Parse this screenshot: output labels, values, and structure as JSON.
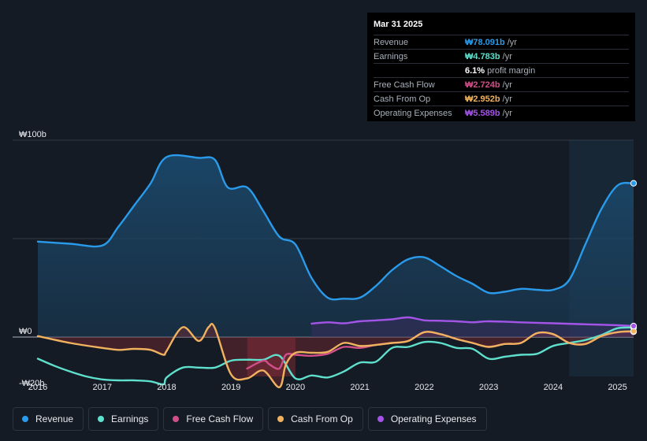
{
  "tooltip": {
    "date": "Mar 31 2025",
    "rows": [
      {
        "label": "Revenue",
        "value": "₩78.091b",
        "unit": "/yr",
        "color": "#2a9bea"
      },
      {
        "label": "Earnings",
        "value": "₩4.783b",
        "unit": "/yr",
        "color": "#5ee0cd"
      },
      {
        "label": "",
        "value": "6.1%",
        "unit": "profit margin",
        "color": "#ffffff"
      },
      {
        "label": "Free Cash Flow",
        "value": "₩2.724b",
        "unit": "/yr",
        "color": "#d14f8a"
      },
      {
        "label": "Cash From Op",
        "value": "₩2.952b",
        "unit": "/yr",
        "color": "#f0b25e"
      },
      {
        "label": "Operating Expenses",
        "value": "₩5.589b",
        "unit": "/yr",
        "color": "#a455e8"
      }
    ]
  },
  "legend": [
    {
      "label": "Revenue",
      "color": "#2a9bea"
    },
    {
      "label": "Earnings",
      "color": "#5ee0cd"
    },
    {
      "label": "Free Cash Flow",
      "color": "#d14f8a"
    },
    {
      "label": "Cash From Op",
      "color": "#f0b25e"
    },
    {
      "label": "Operating Expenses",
      "color": "#a455e8"
    }
  ],
  "chart_data": {
    "type": "line",
    "y_tick_labels": [
      "₩100b",
      "₩0",
      "-₩20b"
    ],
    "y_ticks": [
      100,
      0,
      -20
    ],
    "ylim": [
      -20,
      100
    ],
    "xlim": [
      2016,
      2025.25
    ],
    "x_tick_labels": [
      "2016",
      "2017",
      "2018",
      "2019",
      "2020",
      "2021",
      "2022",
      "2023",
      "2024",
      "2025"
    ],
    "x_ticks": [
      2016,
      2017,
      2018,
      2019,
      2020,
      2021,
      2022,
      2023,
      2024,
      2025
    ],
    "forecast_start": 2024.25,
    "series": [
      {
        "name": "Revenue",
        "color": "#2a9bea",
        "fill": true,
        "points": [
          [
            2016,
            48.5
          ],
          [
            2016.5,
            47.4
          ],
          [
            2017,
            46.5
          ],
          [
            2017.25,
            56
          ],
          [
            2017.5,
            67
          ],
          [
            2017.75,
            78
          ],
          [
            2018,
            91.5
          ],
          [
            2018.5,
            91
          ],
          [
            2018.75,
            90
          ],
          [
            2018.95,
            76
          ],
          [
            2019.25,
            76
          ],
          [
            2019.5,
            64
          ],
          [
            2019.75,
            51
          ],
          [
            2020,
            47
          ],
          [
            2020.25,
            30
          ],
          [
            2020.5,
            20
          ],
          [
            2020.75,
            19.5
          ],
          [
            2021,
            20
          ],
          [
            2021.25,
            26
          ],
          [
            2021.5,
            34
          ],
          [
            2021.75,
            39.5
          ],
          [
            2022,
            40.5
          ],
          [
            2022.25,
            36
          ],
          [
            2022.5,
            31
          ],
          [
            2022.75,
            27
          ],
          [
            2023,
            22.5
          ],
          [
            2023.25,
            23
          ],
          [
            2023.5,
            24.5
          ],
          [
            2023.75,
            24
          ],
          [
            2024,
            24
          ],
          [
            2024.25,
            29
          ],
          [
            2024.5,
            47
          ],
          [
            2024.75,
            65
          ],
          [
            2025,
            77
          ],
          [
            2025.25,
            78.1
          ]
        ]
      },
      {
        "name": "Earnings",
        "color": "#5ee0cd",
        "fill": false,
        "points": [
          [
            2016,
            -11
          ],
          [
            2016.25,
            -14.5
          ],
          [
            2016.5,
            -17.5
          ],
          [
            2016.75,
            -20
          ],
          [
            2017,
            -21.5
          ],
          [
            2017.25,
            -22
          ],
          [
            2017.5,
            -22
          ],
          [
            2017.75,
            -22.5
          ],
          [
            2017.95,
            -24
          ],
          [
            2018,
            -20.5
          ],
          [
            2018.25,
            -15.5
          ],
          [
            2018.5,
            -15.5
          ],
          [
            2018.75,
            -15.5
          ],
          [
            2019,
            -12
          ],
          [
            2019.25,
            -11.5
          ],
          [
            2019.5,
            -11.5
          ],
          [
            2019.75,
            -9.5
          ],
          [
            2020,
            -21
          ],
          [
            2020.25,
            -19.5
          ],
          [
            2020.5,
            -20.5
          ],
          [
            2020.75,
            -17.5
          ],
          [
            2021,
            -13
          ],
          [
            2021.25,
            -12.5
          ],
          [
            2021.5,
            -5.5
          ],
          [
            2021.75,
            -5
          ],
          [
            2022,
            -2.5
          ],
          [
            2022.25,
            -3
          ],
          [
            2022.5,
            -5.5
          ],
          [
            2022.75,
            -6
          ],
          [
            2023,
            -11
          ],
          [
            2023.25,
            -10
          ],
          [
            2023.5,
            -9
          ],
          [
            2023.75,
            -8.5
          ],
          [
            2024,
            -4.5
          ],
          [
            2024.25,
            -3
          ],
          [
            2024.5,
            -1.5
          ],
          [
            2024.75,
            1
          ],
          [
            2025,
            4.5
          ],
          [
            2025.25,
            4.8
          ]
        ]
      },
      {
        "name": "Free Cash Flow",
        "color": "#d14f8a",
        "fill": false,
        "points": [
          [
            2019.25,
            -16
          ],
          [
            2019.5,
            -12
          ],
          [
            2019.6,
            -14
          ],
          [
            2019.75,
            -16
          ],
          [
            2019.85,
            -9
          ],
          [
            2020,
            -9
          ],
          [
            2020.25,
            -9.5
          ],
          [
            2020.5,
            -8.5
          ],
          [
            2020.75,
            -5
          ],
          [
            2021,
            -5.5
          ],
          [
            2021.25,
            -4
          ],
          [
            2021.5,
            -3
          ],
          [
            2021.75,
            -2
          ],
          [
            2022,
            2.5
          ],
          [
            2022.25,
            1.5
          ],
          [
            2022.5,
            -1
          ],
          [
            2022.75,
            -3
          ],
          [
            2023,
            -5
          ],
          [
            2023.25,
            -3.5
          ],
          [
            2023.5,
            -3
          ],
          [
            2023.75,
            2
          ],
          [
            2024,
            1.5
          ],
          [
            2024.25,
            -3
          ],
          [
            2024.5,
            -3.5
          ],
          [
            2024.75,
            0.5
          ],
          [
            2025,
            2.5
          ],
          [
            2025.25,
            2.7
          ]
        ]
      },
      {
        "name": "Cash From Op",
        "color": "#f0b25e",
        "fill": false,
        "points": [
          [
            2016,
            0.5
          ],
          [
            2016.5,
            -3
          ],
          [
            2017,
            -5.5
          ],
          [
            2017.25,
            -6.5
          ],
          [
            2017.5,
            -6
          ],
          [
            2017.75,
            -6.5
          ],
          [
            2017.95,
            -9
          ],
          [
            2018,
            -7
          ],
          [
            2018.25,
            5
          ],
          [
            2018.5,
            -2
          ],
          [
            2018.65,
            5
          ],
          [
            2018.75,
            4.5
          ],
          [
            2019,
            -19
          ],
          [
            2019.25,
            -21
          ],
          [
            2019.5,
            -17
          ],
          [
            2019.75,
            -25.5
          ],
          [
            2019.85,
            -14
          ],
          [
            2020,
            -8
          ],
          [
            2020.25,
            -8
          ],
          [
            2020.5,
            -7.5
          ],
          [
            2020.75,
            -3
          ],
          [
            2021,
            -4.5
          ],
          [
            2021.25,
            -4
          ],
          [
            2021.5,
            -3
          ],
          [
            2021.75,
            -2
          ],
          [
            2022,
            2.5
          ],
          [
            2022.25,
            1.5
          ],
          [
            2022.5,
            -1
          ],
          [
            2022.75,
            -3
          ],
          [
            2023,
            -5
          ],
          [
            2023.25,
            -3.5
          ],
          [
            2023.5,
            -3
          ],
          [
            2023.75,
            2
          ],
          [
            2024,
            1.5
          ],
          [
            2024.25,
            -3
          ],
          [
            2024.5,
            -3.5
          ],
          [
            2024.75,
            0.5
          ],
          [
            2025,
            2.5
          ],
          [
            2025.25,
            2.95
          ]
        ]
      },
      {
        "name": "Operating Expenses",
        "color": "#a455e8",
        "fill": false,
        "points": [
          [
            2020.25,
            6.8
          ],
          [
            2020.5,
            7.5
          ],
          [
            2020.75,
            7
          ],
          [
            2021,
            8
          ],
          [
            2021.25,
            8.5
          ],
          [
            2021.5,
            9
          ],
          [
            2021.75,
            10
          ],
          [
            2022,
            8.5
          ],
          [
            2022.25,
            8.3
          ],
          [
            2022.5,
            8
          ],
          [
            2022.75,
            7.5
          ],
          [
            2023,
            8
          ],
          [
            2023.5,
            7.5
          ],
          [
            2024,
            7
          ],
          [
            2024.5,
            6.5
          ],
          [
            2025,
            6
          ],
          [
            2025.25,
            5.6
          ]
        ]
      }
    ]
  }
}
